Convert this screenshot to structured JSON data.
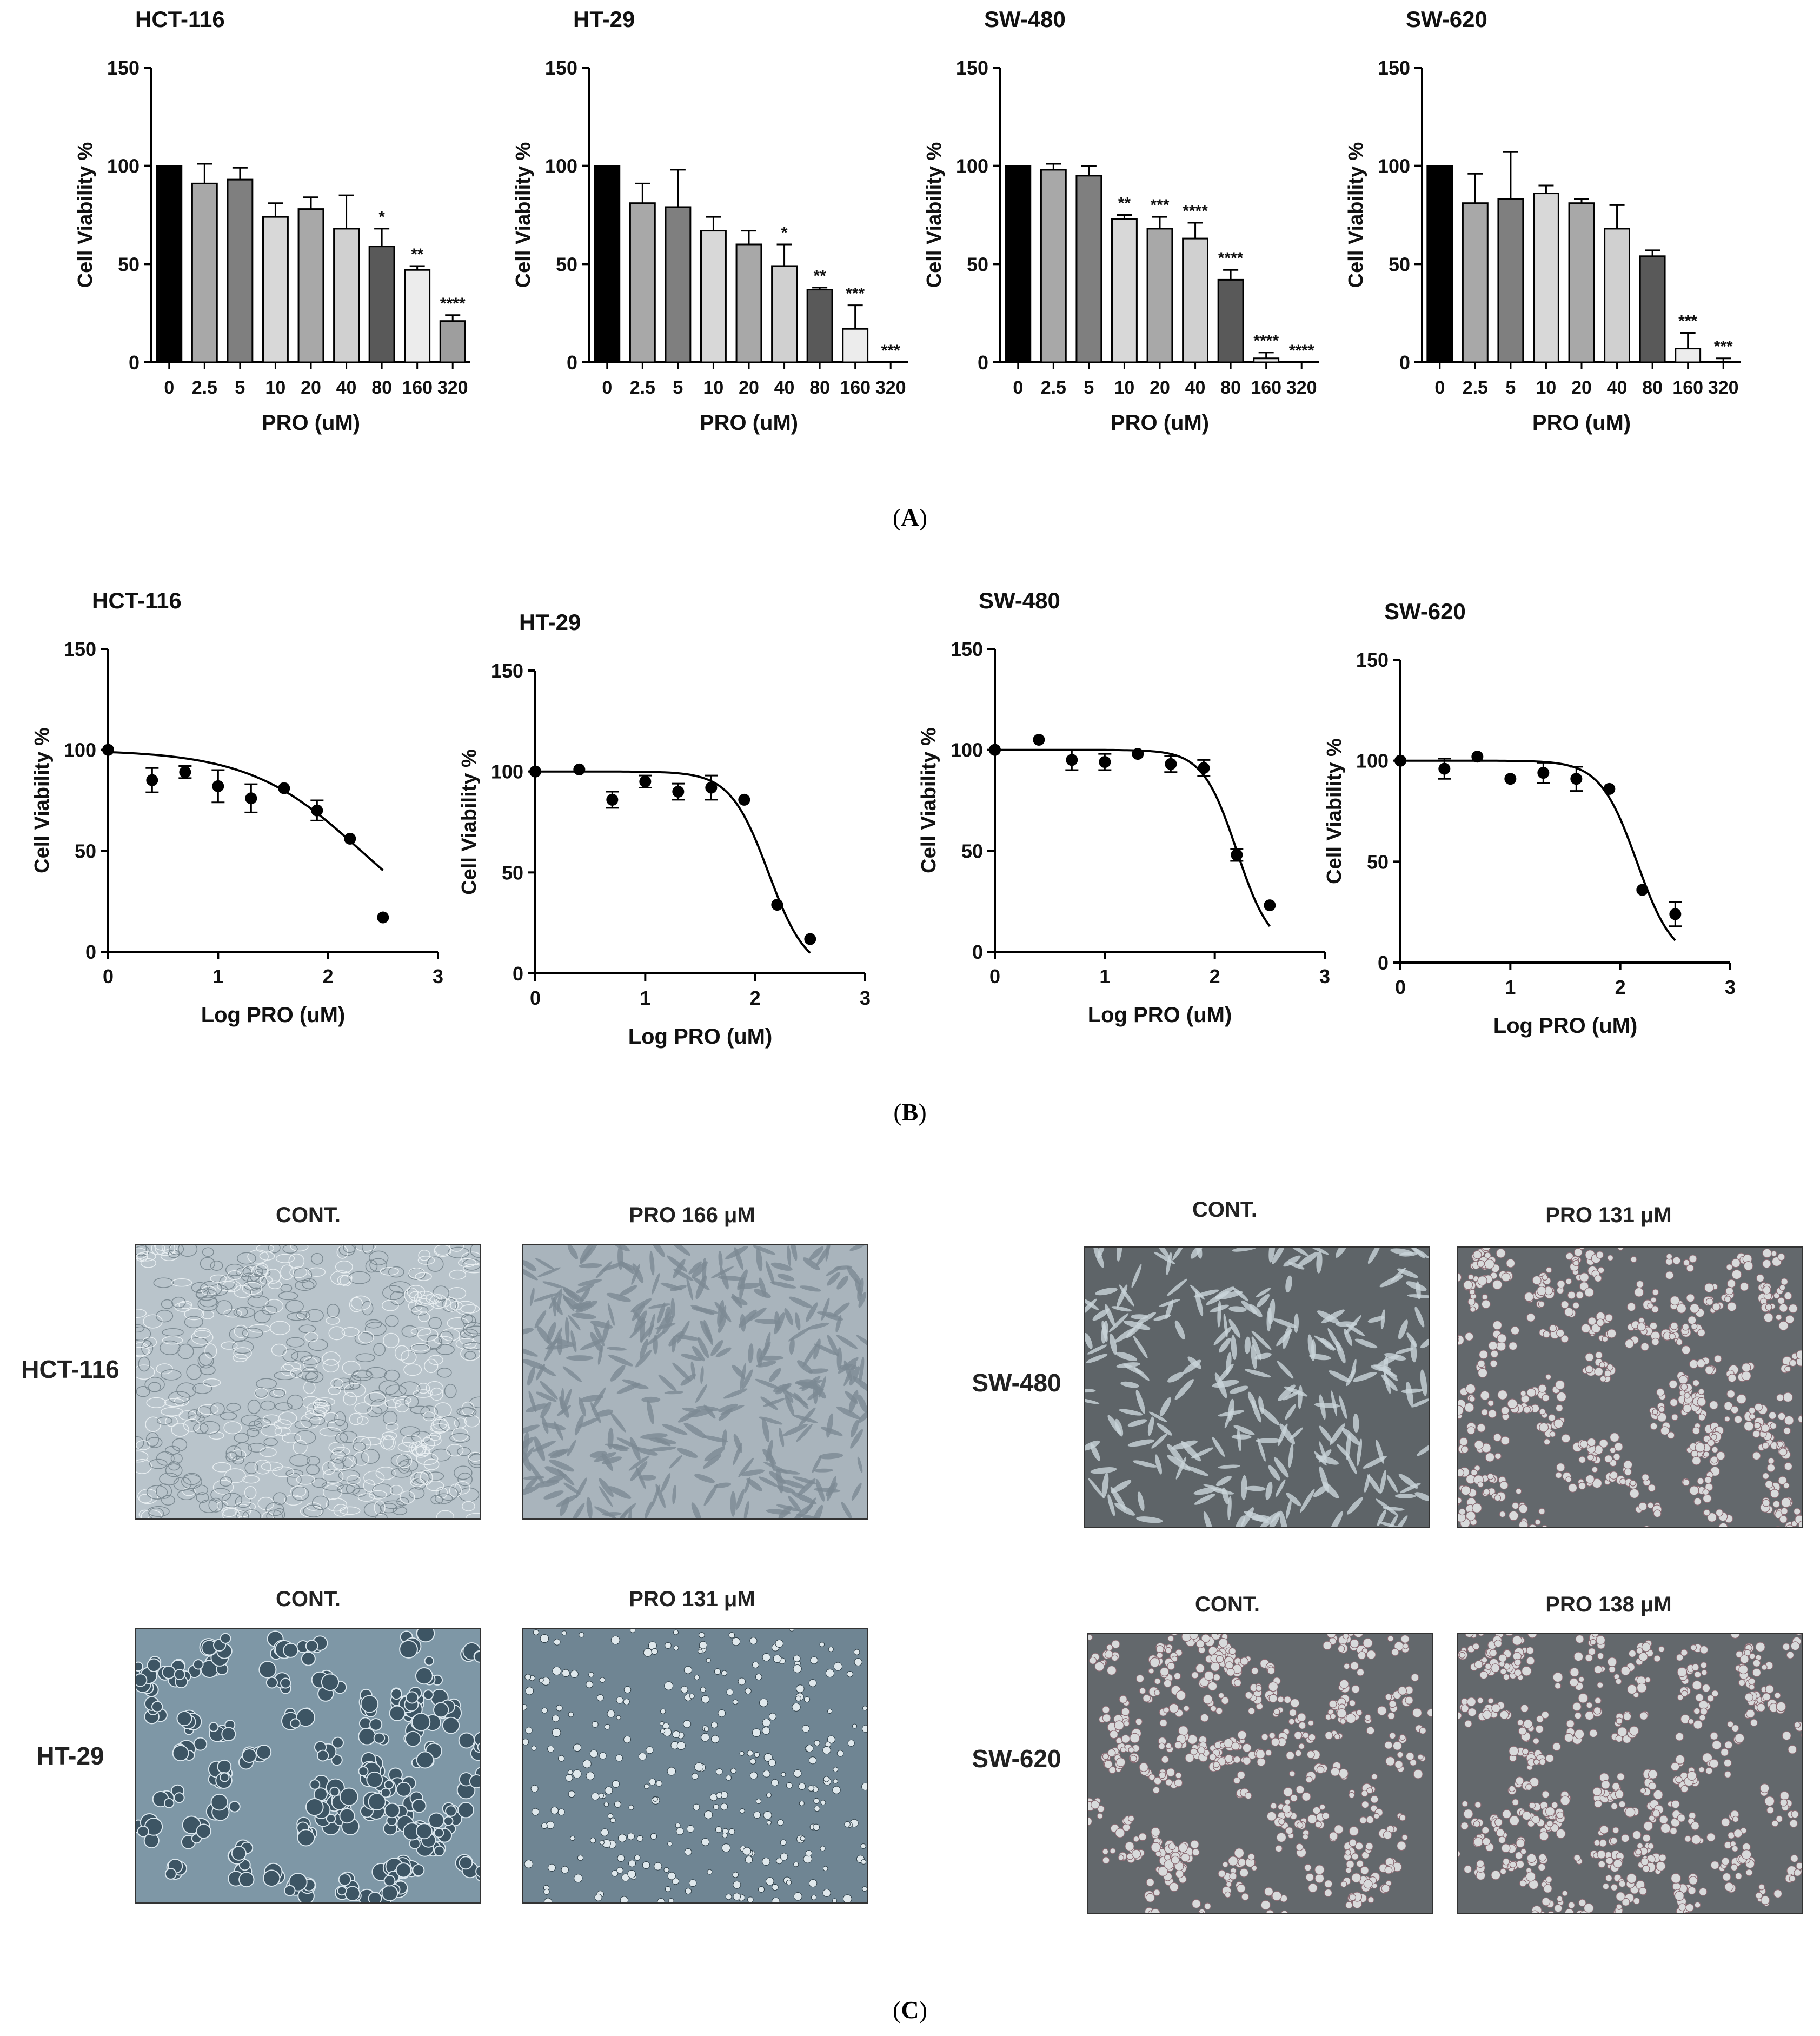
{
  "panel_labels": {
    "A": "A",
    "B": "B",
    "C": "C"
  },
  "chart_data": [
    {
      "type": "bar",
      "panel": "A",
      "title": "HCT-116",
      "xlabel": "PRO (uM)",
      "ylabel": "Cell Viability %",
      "ylim": [
        0,
        150
      ],
      "yticks": [
        0,
        50,
        100,
        150
      ],
      "categories": [
        "0",
        "2.5",
        "5",
        "10",
        "20",
        "40",
        "80",
        "160",
        "320"
      ],
      "values": [
        100,
        91,
        93,
        74,
        78,
        68,
        59,
        47,
        21
      ],
      "errors": [
        0,
        10,
        6,
        7,
        6,
        17,
        9,
        2,
        3
      ],
      "significance": [
        "",
        "",
        "",
        "",
        "",
        "",
        "*",
        "**",
        "****"
      ],
      "bar_colors": [
        "#000000",
        "#a8a8a8",
        "#7f7f7f",
        "#d8d8d8",
        "#a8a8a8",
        "#d0d0d0",
        "#595959",
        "#ececec",
        "#9e9e9e"
      ]
    },
    {
      "type": "bar",
      "panel": "A",
      "title": "HT-29",
      "xlabel": "PRO (uM)",
      "ylabel": "Cell Viability %",
      "ylim": [
        0,
        150
      ],
      "yticks": [
        0,
        50,
        100,
        150
      ],
      "categories": [
        "0",
        "2.5",
        "5",
        "10",
        "20",
        "40",
        "80",
        "160",
        "320"
      ],
      "values": [
        100,
        81,
        79,
        67,
        60,
        49,
        37,
        17,
        0
      ],
      "errors": [
        0,
        10,
        19,
        7,
        7,
        11,
        1,
        12,
        0
      ],
      "significance": [
        "",
        "",
        "",
        "",
        "",
        "*",
        "**",
        "***",
        "***"
      ],
      "bar_colors": [
        "#000000",
        "#a8a8a8",
        "#7f7f7f",
        "#d8d8d8",
        "#a8a8a8",
        "#d0d0d0",
        "#595959",
        "#ececec",
        "#9e9e9e"
      ]
    },
    {
      "type": "bar",
      "panel": "A",
      "title": "SW-480",
      "xlabel": "PRO (uM)",
      "ylabel": "Cell Viability %",
      "ylim": [
        0,
        150
      ],
      "yticks": [
        0,
        50,
        100,
        150
      ],
      "categories": [
        "0",
        "2.5",
        "5",
        "10",
        "20",
        "40",
        "80",
        "160",
        "320"
      ],
      "values": [
        100,
        98,
        95,
        73,
        68,
        63,
        42,
        2,
        0
      ],
      "errors": [
        0,
        3,
        5,
        2,
        6,
        8,
        5,
        3,
        0
      ],
      "significance": [
        "",
        "",
        "",
        "**",
        "***",
        "****",
        "****",
        "****",
        "****"
      ],
      "bar_colors": [
        "#000000",
        "#a8a8a8",
        "#7f7f7f",
        "#d8d8d8",
        "#a8a8a8",
        "#d0d0d0",
        "#595959",
        "#ececec",
        "#9e9e9e"
      ]
    },
    {
      "type": "bar",
      "panel": "A",
      "title": "SW-620",
      "xlabel": "PRO (uM)",
      "ylabel": "Cell Viability %",
      "ylim": [
        0,
        150
      ],
      "yticks": [
        0,
        50,
        100,
        150
      ],
      "categories": [
        "0",
        "2.5",
        "5",
        "10",
        "20",
        "40",
        "80",
        "160",
        "320"
      ],
      "values": [
        100,
        81,
        83,
        86,
        81,
        68,
        54,
        7,
        0
      ],
      "errors": [
        0,
        15,
        24,
        4,
        2,
        12,
        3,
        8,
        2
      ],
      "significance": [
        "",
        "",
        "",
        "",
        "",
        "",
        "",
        "***",
        "***"
      ],
      "bar_colors": [
        "#000000",
        "#a8a8a8",
        "#7f7f7f",
        "#d8d8d8",
        "#a8a8a8",
        "#d0d0d0",
        "#595959",
        "#ececec",
        "#9e9e9e"
      ]
    },
    {
      "type": "scatter",
      "panel": "B",
      "title": "HCT-116",
      "xlabel": "Log PRO (uM)",
      "ylabel": "Cell Viability %",
      "xlim": [
        0,
        3
      ],
      "xticks": [
        0,
        1,
        2,
        3
      ],
      "ylim": [
        0,
        150
      ],
      "yticks": [
        0,
        50,
        100,
        150
      ],
      "x": [
        0,
        0.4,
        0.7,
        1.0,
        1.3,
        1.6,
        1.9,
        2.2,
        2.5
      ],
      "y": [
        100,
        85,
        89,
        82,
        76,
        81,
        70,
        56,
        17
      ],
      "errors": [
        0,
        6,
        3,
        8,
        7,
        0,
        5,
        0,
        0
      ],
      "fit": {
        "top": 100,
        "bottom": 0,
        "log_ic50": 2.3,
        "hill": 0.85
      }
    },
    {
      "type": "scatter",
      "panel": "B",
      "title": "HT-29",
      "xlabel": "Log PRO (uM)",
      "ylabel": "Cell Viability %",
      "xlim": [
        0,
        3
      ],
      "xticks": [
        0,
        1,
        2,
        3
      ],
      "ylim": [
        0,
        150
      ],
      "yticks": [
        0,
        50,
        100,
        150
      ],
      "x": [
        0,
        0.4,
        0.7,
        1.0,
        1.3,
        1.6,
        1.9,
        2.2,
        2.5
      ],
      "y": [
        100,
        101,
        86,
        95,
        90,
        92,
        86,
        34,
        17
      ],
      "errors": [
        0,
        0,
        4,
        3,
        4,
        6,
        0,
        0,
        0
      ],
      "fit": {
        "top": 100,
        "bottom": 0,
        "log_ic50": 2.12,
        "hill": 2.5
      }
    },
    {
      "type": "scatter",
      "panel": "B",
      "title": "SW-480",
      "xlabel": "Log PRO (uM)",
      "ylabel": "Cell Viability %",
      "xlim": [
        0,
        3
      ],
      "xticks": [
        0,
        1,
        2,
        3
      ],
      "ylim": [
        0,
        150
      ],
      "yticks": [
        0,
        50,
        100,
        150
      ],
      "x": [
        0,
        0.4,
        0.7,
        1.0,
        1.3,
        1.6,
        1.9,
        2.2,
        2.5
      ],
      "y": [
        100,
        105,
        95,
        94,
        98,
        93,
        91,
        48,
        23
      ],
      "errors": [
        0,
        0,
        5,
        4,
        0,
        4,
        4,
        3,
        0
      ],
      "fit": {
        "top": 100,
        "bottom": 0,
        "log_ic50": 2.2,
        "hill": 2.8
      }
    },
    {
      "type": "scatter",
      "panel": "B",
      "title": "SW-620",
      "xlabel": "Log PRO (uM)",
      "ylabel": "Cell Viability %",
      "xlim": [
        0,
        3
      ],
      "xticks": [
        0,
        1,
        2,
        3
      ],
      "ylim": [
        0,
        150
      ],
      "yticks": [
        0,
        50,
        100,
        150
      ],
      "x": [
        0,
        0.4,
        0.7,
        1.0,
        1.3,
        1.6,
        1.9,
        2.2,
        2.5
      ],
      "y": [
        100,
        96,
        102,
        91,
        94,
        91,
        86,
        36,
        24
      ],
      "errors": [
        0,
        5,
        0,
        0,
        5,
        6,
        0,
        0,
        6
      ],
      "fit": {
        "top": 100,
        "bottom": 0,
        "log_ic50": 2.15,
        "hill": 2.6
      }
    }
  ],
  "micrographs": {
    "cont_label": "CONT.",
    "rows": [
      {
        "cell_line": "HCT-116",
        "treated_label": "PRO 166 μM"
      },
      {
        "cell_line": "HT-29",
        "treated_label": "PRO 131 μM"
      },
      {
        "cell_line": "SW-480",
        "treated_label": "PRO 131 μM"
      },
      {
        "cell_line": "SW-620",
        "treated_label": "PRO 138 μM"
      }
    ]
  }
}
